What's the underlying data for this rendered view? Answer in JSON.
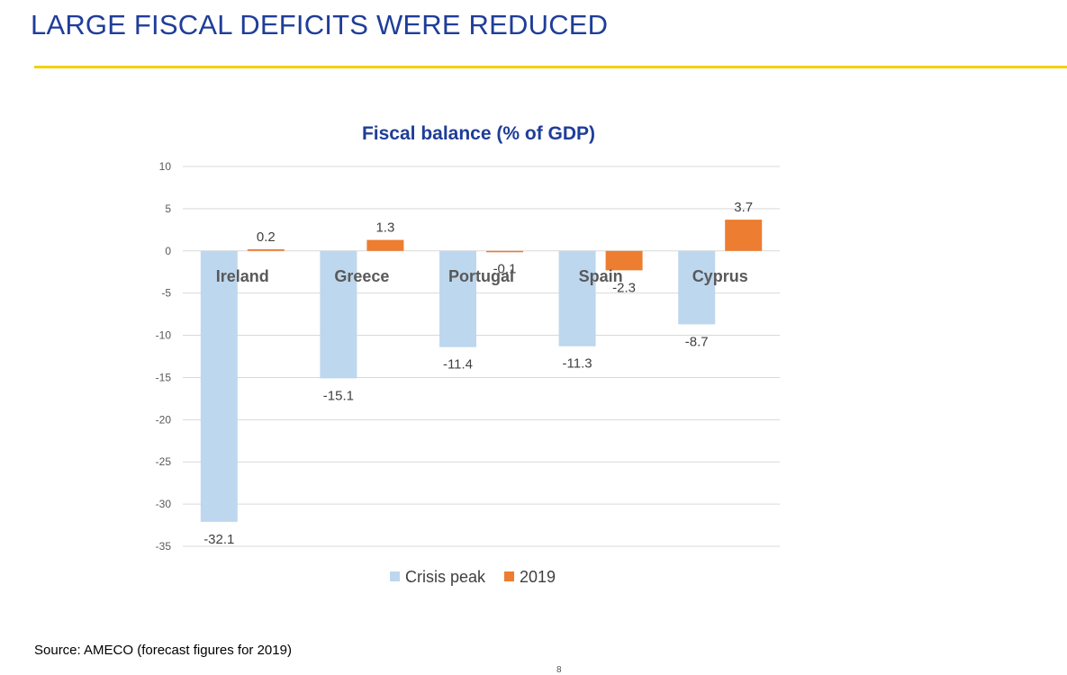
{
  "slide": {
    "title": "LARGE FISCAL DEFICITS WERE REDUCED",
    "source": "Source: AMECO (forecast figures for 2019)",
    "page_number": "8"
  },
  "colors": {
    "title": "#1f3d99",
    "accent_rule": "#f4d000",
    "crisis_peak": "#bdd7ee",
    "year_2019": "#ed7d31",
    "gridline": "#d9d9d9",
    "category_label": "#595959"
  },
  "chart_data": {
    "type": "bar",
    "title": "Fiscal balance (% of GDP)",
    "xlabel": "",
    "ylabel": "",
    "categories": [
      "Ireland",
      "Greece",
      "Portugal",
      "Spain",
      "Cyprus"
    ],
    "series": [
      {
        "name": "Crisis peak",
        "values": [
          -32.1,
          -15.1,
          -11.4,
          -11.3,
          -8.7
        ],
        "labels": [
          "-32.1",
          "-15.1",
          "-11.4",
          "-11.3",
          "-8.7"
        ]
      },
      {
        "name": "2019",
        "values": [
          0.2,
          1.3,
          -0.1,
          -2.3,
          3.7
        ],
        "labels": [
          "0.2",
          "1.3",
          "-0.1",
          "-2.3",
          "3.7"
        ]
      }
    ],
    "ylim": [
      -35,
      10
    ],
    "yticks": [
      10,
      5,
      0,
      -5,
      -10,
      -15,
      -20,
      -25,
      -30,
      -35
    ],
    "grid": true,
    "legend": "bottom-center",
    "category_labels_position": "below-zero-line"
  }
}
